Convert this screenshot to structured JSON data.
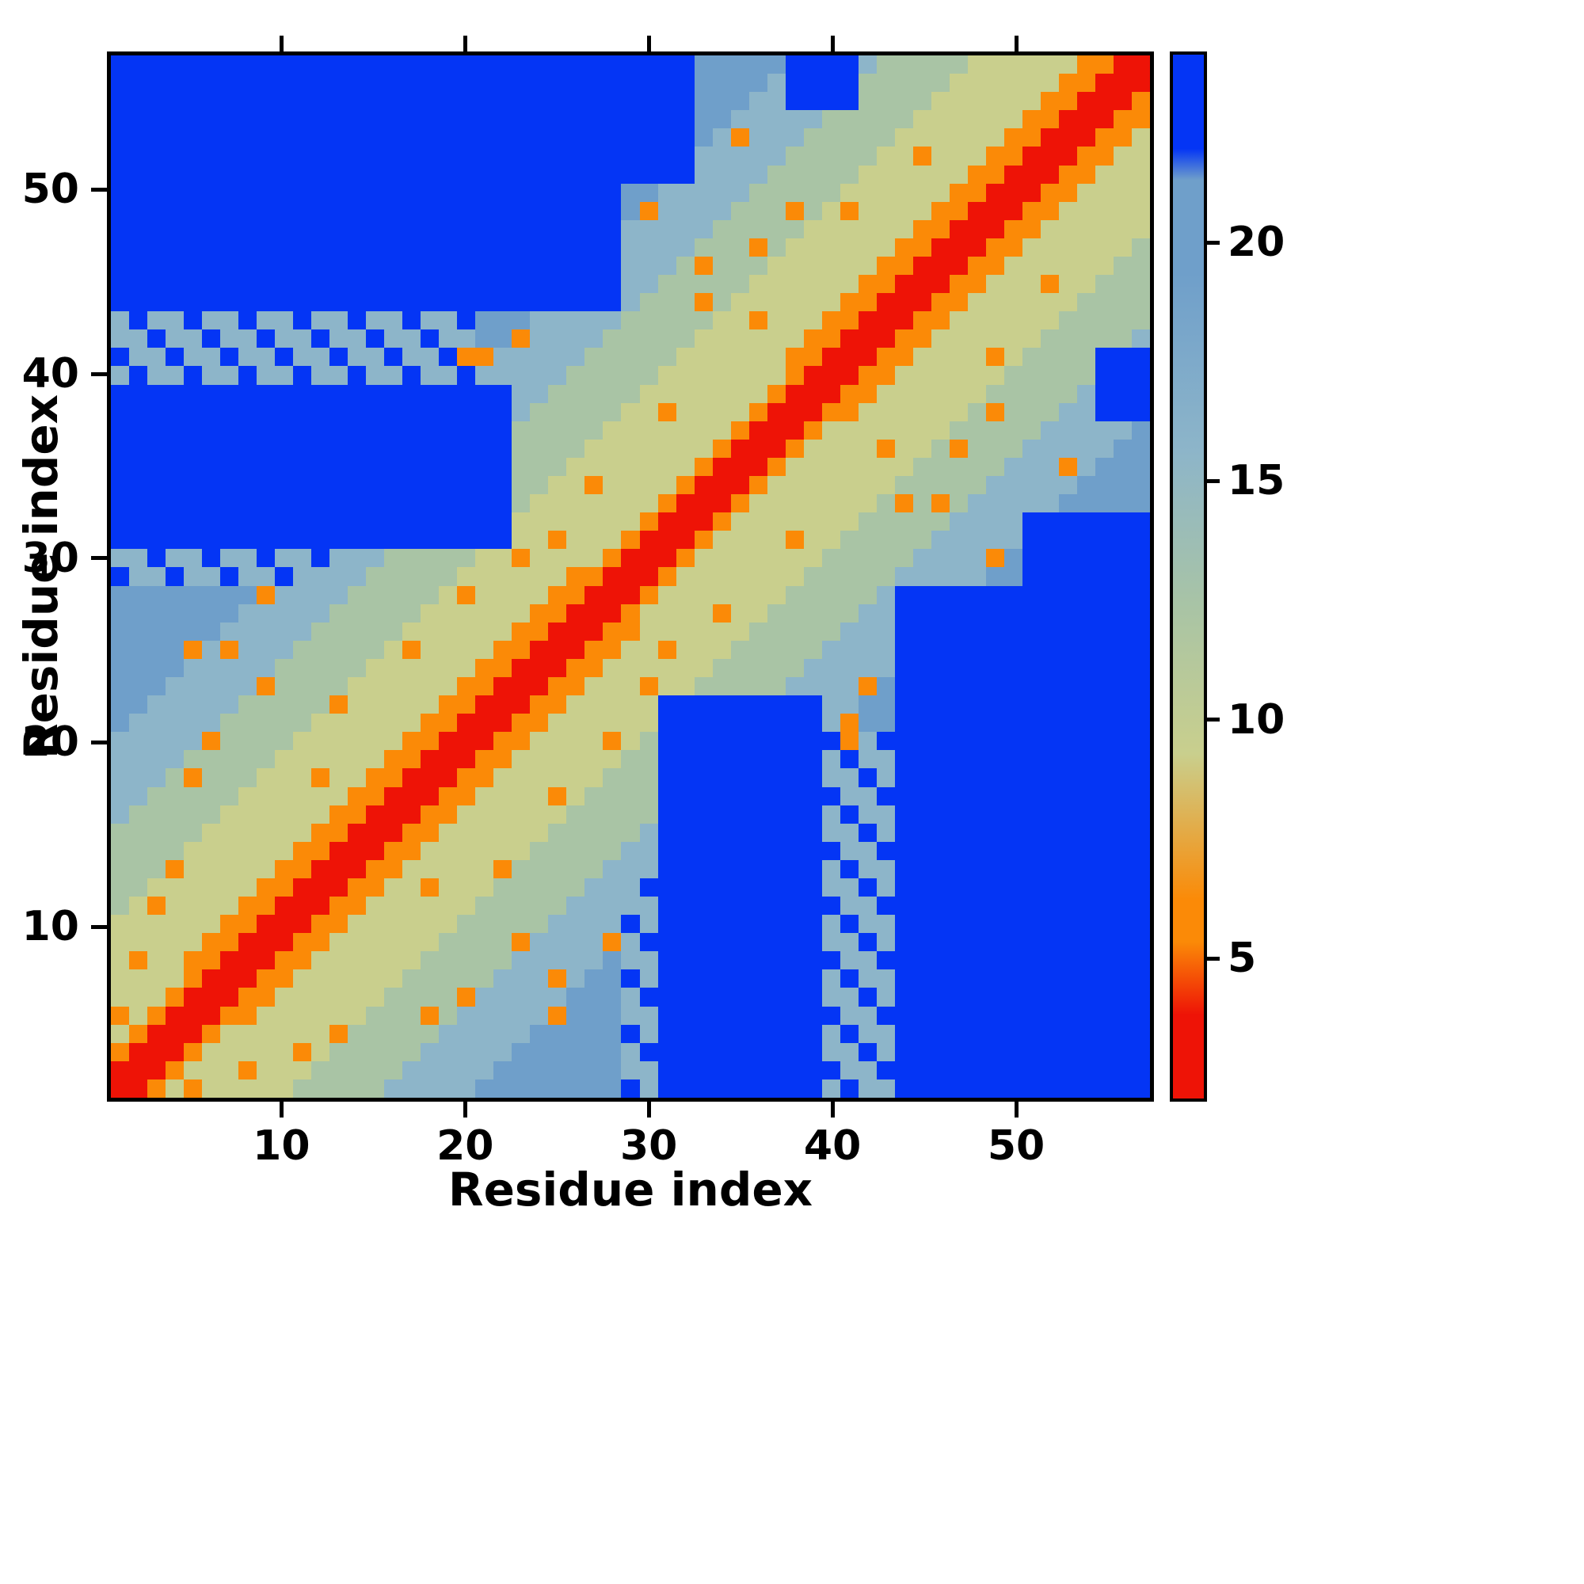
{
  "chart_data": {
    "type": "heatmap",
    "title": "",
    "xlabel": "Residue index",
    "ylabel": "Residue index",
    "n": 57,
    "x_range": [
      1,
      57
    ],
    "y_range": [
      1,
      57
    ],
    "x_ticks": [
      10,
      20,
      30,
      40,
      50
    ],
    "y_ticks": [
      10,
      20,
      30,
      40,
      50
    ],
    "grid": false,
    "legend_position": "none",
    "colorbar": {
      "position": "right",
      "orientation": "vertical",
      "range_min": 2,
      "range_max": 24,
      "ticks": [
        5,
        10,
        15,
        20
      ]
    },
    "value_map": {
      "R": 2.5,
      "O": 5.5,
      "y": 9.5,
      "g": 12.5,
      "b": 16,
      "B": 19.5,
      "Z": 24
    },
    "palette": {
      "R": "#ee1306",
      "O": "#fb8a07",
      "y": "#c9cf8d",
      "g": "#a9c4a5",
      "b": "#8db5c9",
      "B": "#6f9fca",
      "Z": "#0435f5"
    },
    "encoding_note": "Each string is one heatmap row, listed top (residue 57) to bottom (residue 1); each character is one cell from residue 1 (left) to residue 57 (right); characters map to approximate distance values via value_map (Z = saturated/capped blue class, values >= ~22).",
    "values_estimated": true,
    "rows_top_to_bottom": [
      "ZZZZZZZZZZZZZZZZZZZZZZZZZZZZZZZZBBBBBZZZZbgggggyyyyyyOORR",
      "ZZZZZZZZZZZZZZZZZZZZZZZZZZZZZZZZBBBBbZZZZgggggyyyyyyOORRR",
      "ZZZZZZZZZZZZZZZZZZZZZZZZZZZZZZZZBBBbbZZZZggggyyyyyyOORRRO",
      "ZZZZZZZZZZZZZZZZZZZZZZZZZZZZZZZZBBbbbbbgggggyyyyyyOORRROO",
      "ZZZZZZZZZZZZZZZZZZZZZZZZZZZZZZZZBbObbbgggggyyyyyyOORRROOy",
      "ZZZZZZZZZZZZZZZZZZZZZZZZZZZZZZZZbbbbbgggggyyOyyyOORRROOyy",
      "ZZZZZZZZZZZZZZZZZZZZZZZZZZZZZZZZbbbbgggggyyyyyyOORRROOyyy",
      "ZZZZZZZZZZZZZZZZZZZZZZZZZZZZBBbbbbbgggggyyyyyyOORRROOyyyy",
      "ZZZZZZZZZZZZZZZZZZZZZZZZZZZZBObbbbgggOgyOyyyyOORRROOyyyyy",
      "ZZZZZZZZZZZZZZZZZZZZZZZZZZZZbbbbbgggggyyyyyyOORRROOyyyyyy",
      "ZZZZZZZZZZZZZZZZZZZZZZZZZZZZbbbbgggOgyyyyyyOORRROOyyyyyyg",
      "ZZZZZZZZZZZZZZZZZZZZZZZZZZZZbbbgOgggyyyyyyOORRROOyyyyyygg",
      "ZZZZZZZZZZZZZZZZZZZZZZZZZZZZbbgggggyyyyyyOORRROOyyyOyyggg",
      "ZZZZZZZZZZZZZZZZZZZZZZZZZZZZbgggOgyyyyyyOORRROOyyyyyygggg",
      "bZbbZbbZbbZbbZbbZbbZBBBbbbbbgggggyyOyyyOORRROOyyyyyyggggg",
      "bbZbbZbbZbbZbbZbbZbbBBObbbbgggggyyyyyyOORRROOyyyyyygggggb",
      "ZbbZbbZbbZbbZbbZbbZOObbbbbgggggyyyyyyOORRROOyyyyOyggggZZZ",
      "bZbbZbbZbbZbbZbbZbbZbbbbbgggggyyyyyyyORRROOyyyyyygggggZZZ",
      "ZZZZZZZZZZZZZZZZZZZZZZbbgggggyyyyyyyORRROOyyyyyygggggbZZZ",
      "ZZZZZZZZZZZZZZZZZZZZZZbgggggyyOyyyyORRROOyyyyyygOgggbbZZZ",
      "ZZZZZZZZZZZZZZZZZZZZZZgggggyyyyyyyORRROyyyyyyygggggbbbbbB",
      "ZZZZZZZZZZZZZZZZZZZZZZggggyyyyyyyORRROyyyyOyygOgggbbbbbBB",
      "ZZZZZZZZZZZZZZZZZZZZZZgggyyyyyyyORRROyyyyyyygggggbbbObBBB",
      "ZZZZZZZZZZZZZZZZZZZZZZggyyOyyyyORRROyyyyyyygggggbbbbbBBBB",
      "ZZZZZZZZZZZZZZZZZZZZZZgyyyyyyyORRROyyyyyyygOgOgbbbbbBBBBB",
      "ZZZZZZZZZZZZZZZZZZZZZZyyyyyyyORRROyyyyyyygggggbbbbZZZZZZZ",
      "ZZZZZZZZZZZZZZZZZZZZZZyyOyyyORRROyyyyOyygggggbbbbbZZZZZZZ",
      "bbZbbZbbZbbZbbbgggggyyOyyyyORRROyyyyyyygggggbbbbOBZZZZZZZ",
      "ZbbZbbZbbZbbbbgggggyyyyyyOORRROyyyyyyygggggbbbbbBBZZZZZZZ",
      "BBBBBBBBObbbbgggggyOyyyyOORRROyyyyyyygggggbZZZZZZZZZZZZZZ",
      "BBBBBBBbbbbbgggggyyyyyyOORRROyyyyOyygggggbbZZZZZZZZZZZZZZ",
      "BBBBBBbbbbbgggggyyyyyyOORRROOyyyyyygggggbbbZZZZZZZZZZZZZZ",
      "BBBBObObbbgggggyOyyyyOORRROOyyOyyygggggbbbbZZZZZZZZZZZZZZ",
      "BBBBbbbbbgggggyyyyyyOORRROOyyyyyygggggbbbbbZZZZZZZZZZZZZZ",
      "BBBbbbbbOggggyyyyyyOORRROOyyyOyygggggbbbbOBZZZZZZZZZZZZZZ",
      "BBbbbbbgggggOyyyyyOORRROOyyyyyZZZZZZZZZbbBBZZZZZZZZZZZZZZ",
      "BbbbbbgggggyyyyyyOORRROOyyyyyyZZZZZZZZZbOBBZZZZZZZZZZZZZZ",
      "bbbbbOggggyyyyyyOORRROOyyyyOygZZZZZZZZZZObZZZZZZZZZZZZZZZ",
      "bbbbgggggyyyyyyOORRROOyyyyyyggZZZZZZZZZbZbbZZZZZZZZZZZZZZ",
      "bbbgOgggyyyOyyOORRROOyyyyyygggZZZZZZZZZbbZbZZZZZZZZZZZZZZ",
      "bbgggggyyyyyyOORRROOyyyyOyggggZZZZZZZZZZbbZZZZZZZZZZZZZZZ",
      "bgggggyyyyyyOORRROOyyyyyygggggZZZZZZZZZbZbbZZZZZZZZZZZZZZ",
      "gggggyyyyyyOORRROOyyyyyygggggbZZZZZZZZZbbZbZZZZZZZZZZZZZZ",
      "ggggyyyyyyOORRROOyyyyyygggggbbZZZZZZZZZZbbZZZZZZZZZZZZZZZ",
      "gggOyyyyyOORRROOyyyyyOgggggbbbZZZZZZZZZbZbbZZZZZZZZZZZZZZ",
      "ggyyyyyyOORRROOyyOyyygggggbbbZZZZZZZZZZbbZbZZZZZZZZZZZZZZ",
      "gyOyyyyOORRROOyyyyyygggggbbbbbZZZZZZZZZZbbZZZZZZZZZZZZZZZ",
      "yyyyyyOORRROOyyyyyygggggbbbbZbZZZZZZZZZbZbbZZZZZZZZZZZZZZ",
      "yyyyyOORRROOyyyyyyggggObbbbObZZZZZZZZZZbbZbZZZZZZZZZZZZZZ",
      "yOyyOORRROOyyyyyygggggbbbbbBbbZZZZZZZZZZbbZZZZZZZZZZZZZZZ",
      "yyyyORRROOyyyyyygggggbbbObBBZbZZZZZZZZZbZbbZZZZZZZZZZZZZZ",
      "yyyORRROOyyyyyyggggObbbbbBBBbZZZZZZZZZZbbZbZZZZZZZZZZZZZZ",
      "OyORRROOyyyyyygggOgbbbbbOBBBbbZZZZZZZZZZbbZZZZZZZZZZZZZZZ",
      "yORRROyyyyyyOgggggbbbbbBBBBBZbZZZZZZZZZbZbbZZZZZZZZZZZZZZ",
      "ORRROyyyyyOygggggbbbbbBBBBBBbZZZZZZZZZZbbZbZZZZZZZZZZZZZZ",
      "RRROyyyOyyygggggbbbbbBBBBBBBbbZZZZZZZZZZbbZZZZZZZZZZZZZZZ",
      "RROyOyyyyygggggbbbbbBBBBBBBBZbZZZZZZZZZbZbbZZZZZZZZZZZZZZ"
    ]
  }
}
